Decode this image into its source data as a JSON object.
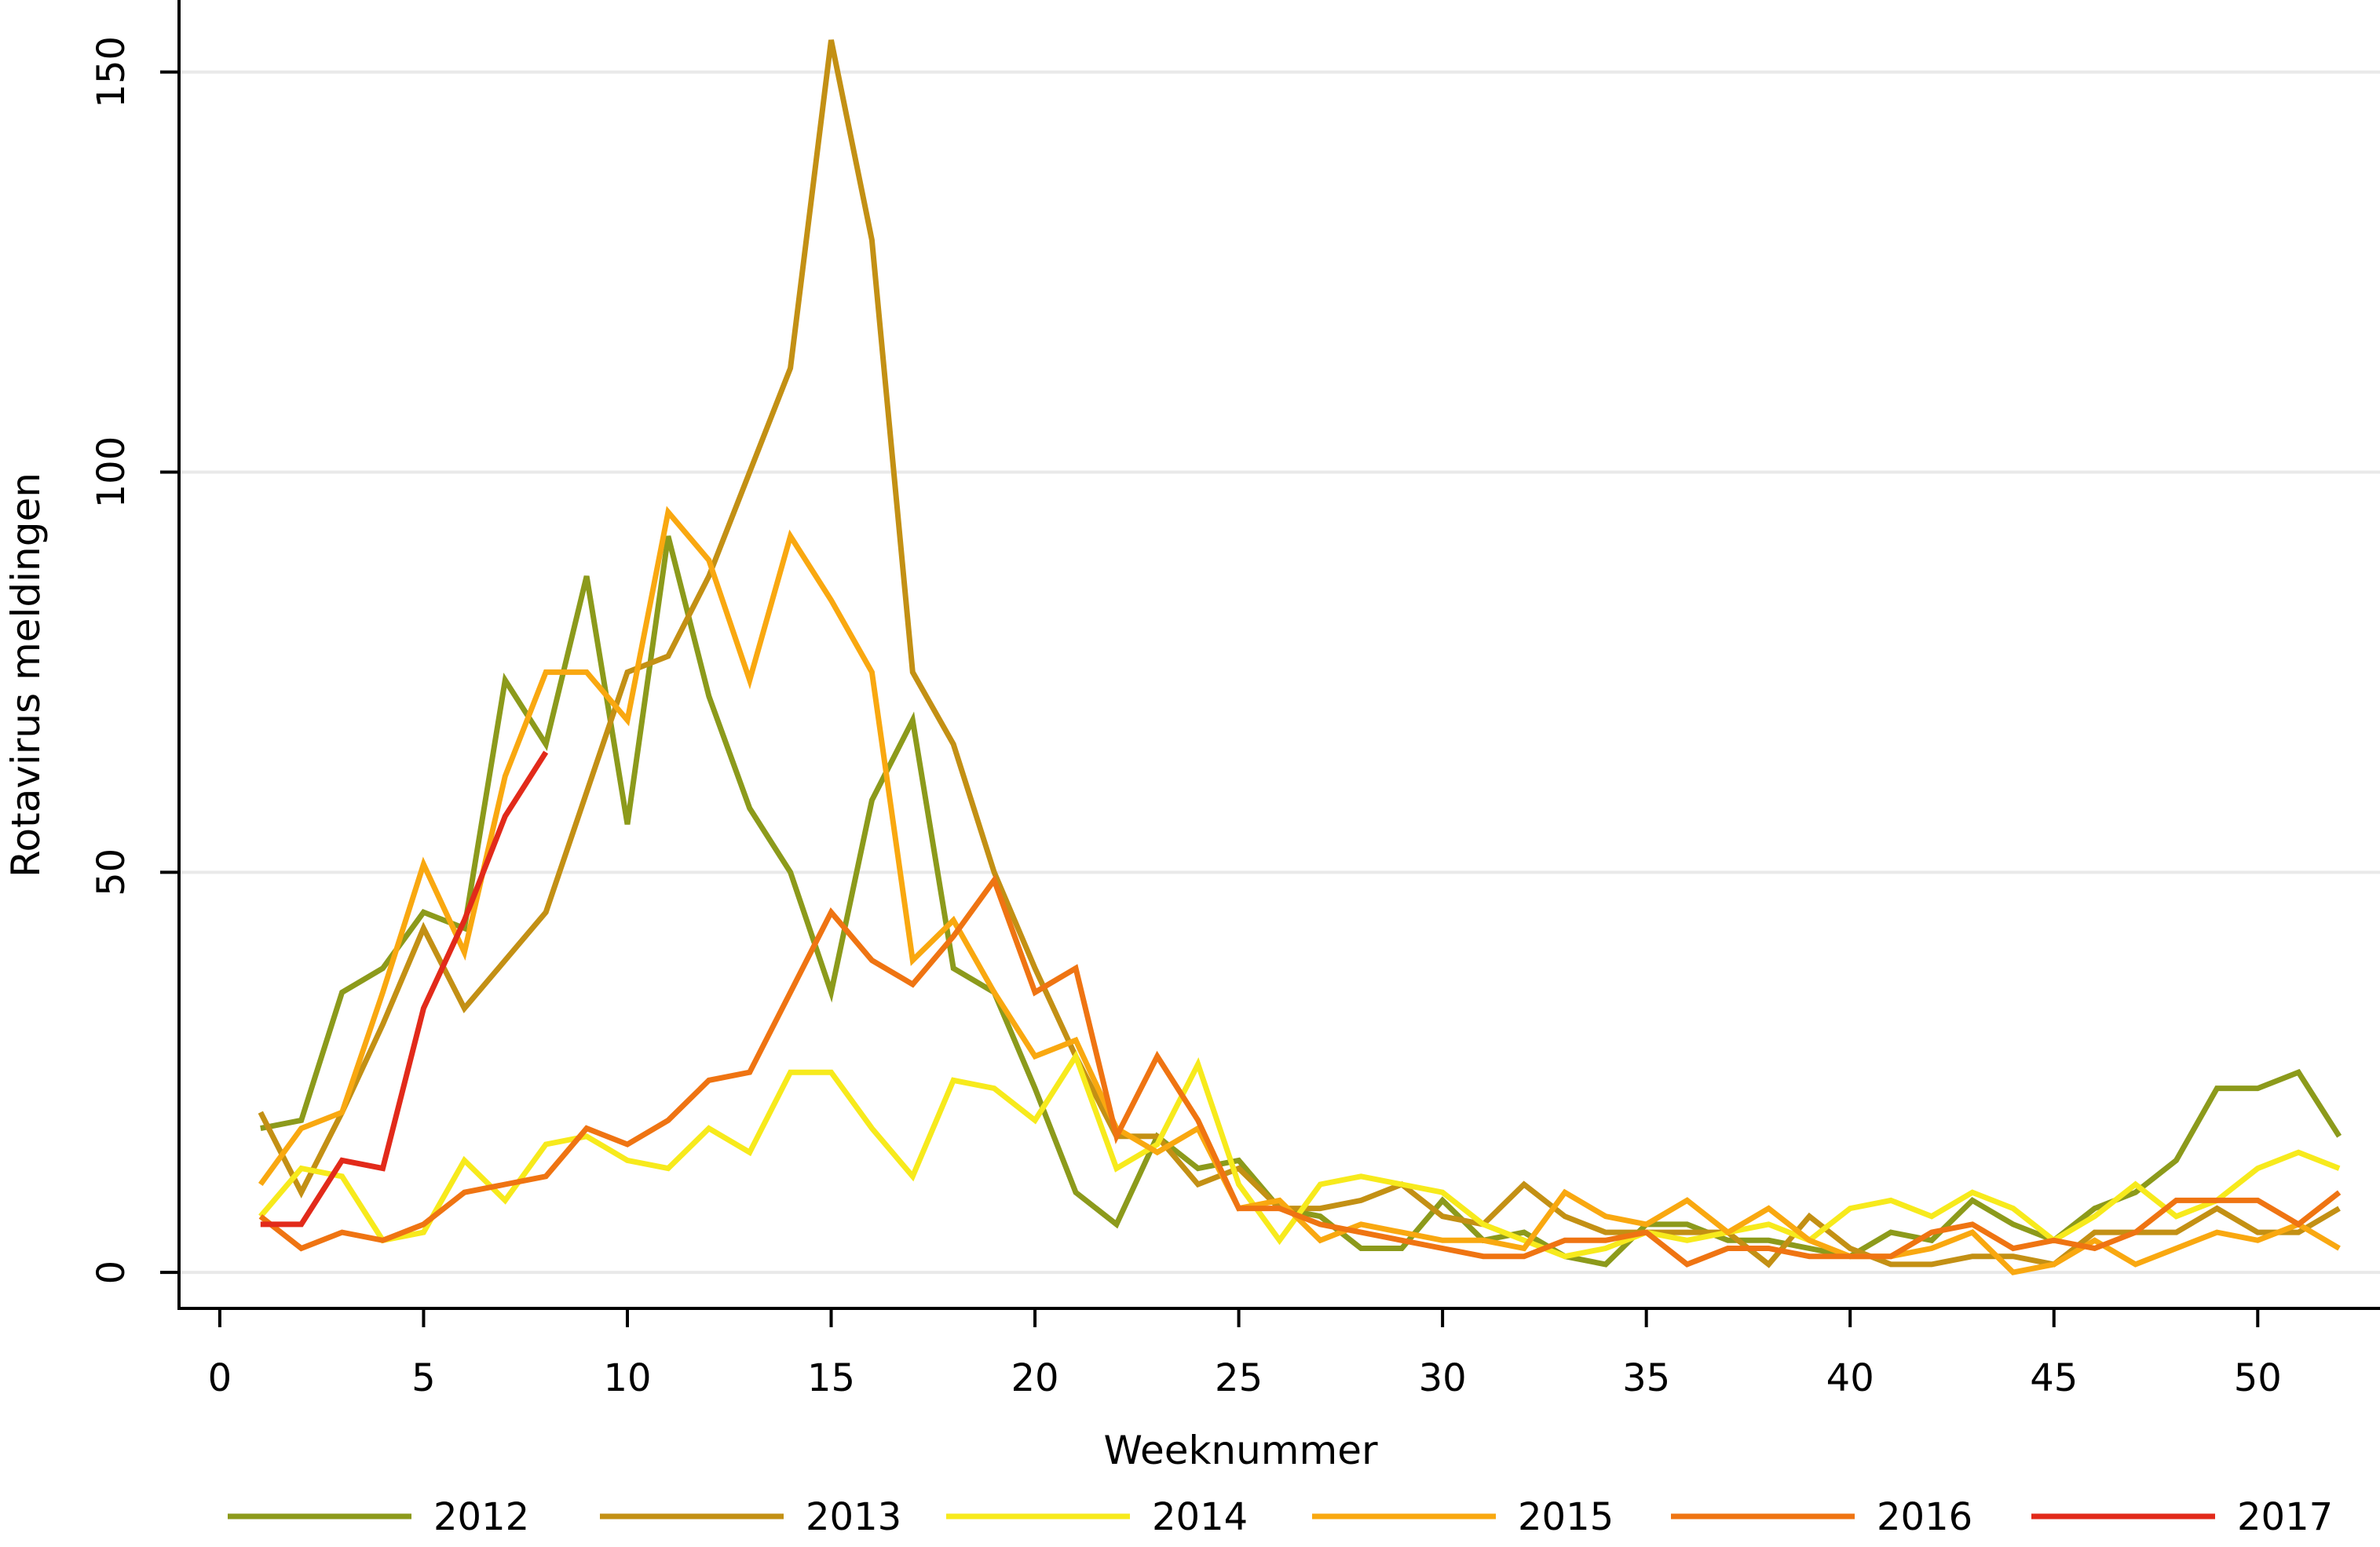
{
  "chart_data": {
    "type": "line",
    "xlabel": "Weeknummer",
    "ylabel": "Rotavirus meldingen",
    "xlim": [
      -1,
      53
    ],
    "ylim": [
      -4.5,
      159
    ],
    "xticks": [
      0,
      5,
      10,
      15,
      20,
      25,
      30,
      35,
      40,
      45,
      50
    ],
    "yticks": [
      0,
      50,
      100,
      150
    ],
    "grid": "horizontal",
    "legend_position": "bottom",
    "series": [
      {
        "name": "2012",
        "color": "#8c9a1b",
        "x": [
          1,
          2,
          3,
          4,
          5,
          6,
          7,
          8,
          9,
          10,
          11,
          12,
          13,
          14,
          15,
          16,
          17,
          18,
          19,
          20,
          21,
          22,
          23,
          24,
          25,
          26,
          27,
          28,
          29,
          30,
          31,
          32,
          33,
          34,
          35,
          36,
          37,
          38,
          39,
          40,
          41,
          42,
          43,
          44,
          45,
          46,
          47,
          48,
          49,
          50,
          51,
          52
        ],
        "values": [
          18,
          19,
          35,
          38,
          45,
          43,
          74,
          66,
          87,
          56,
          92,
          72,
          58,
          50,
          35,
          59,
          69,
          38,
          35,
          23,
          10,
          6,
          17,
          13,
          14,
          8,
          7,
          3,
          3,
          9,
          4,
          5,
          2,
          1,
          6,
          6,
          4,
          4,
          3,
          2,
          5,
          4,
          9,
          6,
          4,
          8,
          10,
          14,
          23,
          23,
          25,
          17
        ]
      },
      {
        "name": "2013",
        "color": "#c39014",
        "x": [
          1,
          2,
          3,
          4,
          5,
          6,
          7,
          8,
          9,
          10,
          11,
          12,
          13,
          14,
          15,
          16,
          17,
          18,
          19,
          20,
          21,
          22,
          23,
          24,
          25,
          26,
          27,
          28,
          29,
          30,
          31,
          32,
          33,
          34,
          35,
          36,
          37,
          38,
          39,
          40,
          41,
          42,
          43,
          44,
          45,
          46,
          47,
          48,
          49,
          50,
          51,
          52
        ],
        "values": [
          20,
          10,
          20,
          31,
          43,
          33,
          39,
          45,
          60,
          75,
          77,
          87,
          100,
          113,
          154,
          129,
          75,
          66,
          50,
          38,
          27,
          17,
          17,
          11,
          13,
          8,
          8,
          9,
          11,
          7,
          6,
          11,
          7,
          5,
          5,
          5,
          5,
          1,
          7,
          3,
          1,
          1,
          2,
          2,
          1,
          5,
          5,
          5,
          8,
          5,
          5,
          8
        ]
      },
      {
        "name": "2014",
        "color": "#f7ea1c",
        "x": [
          1,
          2,
          3,
          4,
          5,
          6,
          7,
          8,
          9,
          10,
          11,
          12,
          13,
          14,
          15,
          16,
          17,
          18,
          19,
          20,
          21,
          22,
          23,
          24,
          25,
          26,
          27,
          28,
          29,
          30,
          31,
          32,
          33,
          34,
          35,
          36,
          37,
          38,
          39,
          40,
          41,
          42,
          43,
          44,
          45,
          46,
          47,
          48,
          49,
          50,
          51,
          52
        ],
        "values": [
          7,
          13,
          12,
          4,
          5,
          14,
          9,
          16,
          17,
          14,
          13,
          18,
          15,
          25,
          25,
          18,
          12,
          24,
          23,
          19,
          27,
          13,
          16,
          26,
          11,
          4,
          11,
          12,
          11,
          10,
          6,
          4,
          2,
          3,
          5,
          4,
          5,
          6,
          4,
          8,
          9,
          7,
          10,
          8,
          4,
          7,
          11,
          7,
          9,
          13,
          15,
          13
        ]
      },
      {
        "name": "2015",
        "color": "#f9a810",
        "x": [
          1,
          2,
          3,
          4,
          5,
          6,
          7,
          8,
          9,
          10,
          11,
          12,
          13,
          14,
          15,
          16,
          17,
          18,
          19,
          20,
          21,
          22,
          23,
          24,
          25,
          26,
          27,
          28,
          29,
          30,
          31,
          32,
          33,
          34,
          35,
          36,
          37,
          38,
          39,
          40,
          41,
          42,
          43,
          44,
          45,
          46,
          47,
          48,
          49,
          50,
          51,
          52
        ],
        "values": [
          11,
          18,
          20,
          35,
          51,
          40,
          62,
          75,
          75,
          69,
          95,
          89,
          74,
          92,
          84,
          75,
          39,
          44,
          35,
          27,
          29,
          18,
          15,
          18,
          8,
          9,
          4,
          6,
          5,
          4,
          4,
          3,
          10,
          7,
          6,
          9,
          5,
          8,
          4,
          2,
          2,
          3,
          5,
          0,
          1,
          4,
          1,
          3,
          5,
          4,
          6,
          3
        ]
      },
      {
        "name": "2016",
        "color": "#ef7412",
        "x": [
          1,
          2,
          3,
          4,
          5,
          6,
          7,
          8,
          9,
          10,
          11,
          12,
          13,
          14,
          15,
          16,
          17,
          18,
          19,
          20,
          21,
          22,
          23,
          24,
          25,
          26,
          27,
          28,
          29,
          30,
          31,
          32,
          33,
          34,
          35,
          36,
          37,
          38,
          39,
          40,
          41,
          42,
          43,
          44,
          45,
          46,
          47,
          48,
          49,
          50,
          51,
          52
        ],
        "values": [
          7,
          3,
          5,
          4,
          6,
          10,
          11,
          12,
          18,
          16,
          19,
          24,
          25,
          35,
          45,
          39,
          36,
          42,
          49,
          35,
          38,
          17,
          27,
          19,
          8,
          8,
          6,
          5,
          4,
          3,
          2,
          2,
          4,
          4,
          5,
          1,
          3,
          3,
          2,
          2,
          2,
          5,
          6,
          3,
          4,
          3,
          5,
          9,
          9,
          9,
          6,
          10
        ]
      },
      {
        "name": "2017",
        "color": "#e22a1a",
        "x": [
          1,
          2,
          3,
          4,
          5,
          6,
          7,
          8
        ],
        "values": [
          6,
          6,
          14,
          13,
          33,
          44,
          57,
          65
        ]
      }
    ]
  }
}
